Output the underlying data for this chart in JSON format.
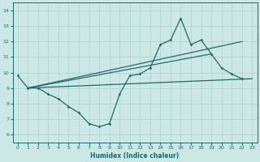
{
  "xlabel": "Humidex (Indice chaleur)",
  "ylabel": "",
  "xlim": [
    -0.5,
    23.5
  ],
  "ylim": [
    5.5,
    14.5
  ],
  "xticks": [
    0,
    1,
    2,
    3,
    4,
    5,
    6,
    7,
    8,
    9,
    10,
    11,
    12,
    13,
    14,
    15,
    16,
    17,
    18,
    19,
    20,
    21,
    22,
    23
  ],
  "yticks": [
    6,
    7,
    8,
    9,
    10,
    11,
    12,
    13,
    14
  ],
  "background_color": "#cce8e5",
  "line_color": "#1a6b6b",
  "grid_color": "#afd0cc",
  "figsize": [
    3.2,
    2.0
  ],
  "dpi": 100,
  "series": [
    {
      "x": [
        0,
        1,
        2,
        3,
        4,
        5,
        6,
        7,
        8,
        9,
        10,
        11,
        12,
        13,
        14,
        15,
        16,
        17,
        18,
        19,
        20,
        21,
        22
      ],
      "y": [
        9.8,
        9.0,
        9.0,
        8.6,
        8.3,
        7.8,
        7.4,
        6.7,
        6.5,
        6.7,
        8.6,
        9.8,
        9.9,
        10.3,
        11.8,
        12.1,
        13.5,
        11.8,
        12.1,
        11.2,
        10.3,
        9.9,
        9.6
      ],
      "has_markers": true,
      "linewidth": 0.9
    },
    {
      "x": [
        1,
        19
      ],
      "y": [
        9.0,
        11.2
      ],
      "has_markers": false,
      "linewidth": 0.9
    },
    {
      "x": [
        1,
        22
      ],
      "y": [
        9.0,
        12.0
      ],
      "has_markers": false,
      "linewidth": 0.9
    },
    {
      "x": [
        1,
        23
      ],
      "y": [
        9.0,
        9.6
      ],
      "has_markers": false,
      "linewidth": 0.9
    }
  ]
}
